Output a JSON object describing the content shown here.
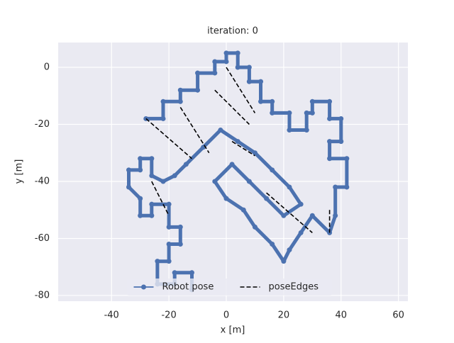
{
  "chart_data": {
    "type": "line",
    "title": "iteration: 0",
    "x_label": "x [m]",
    "y_label": "y [m]",
    "xlim": [
      -58.6,
      63.3
    ],
    "ylim": [
      -82,
      8.7
    ],
    "xticks": [
      -40,
      -20,
      0,
      20,
      40,
      60
    ],
    "yticks": [
      -80,
      -60,
      -40,
      -20,
      0
    ],
    "grid": true,
    "legend": "lower center",
    "series": [
      {
        "name": "Robot pose",
        "color": "#4c72b0",
        "marker": "o",
        "x": [
          -28,
          -22,
          -22,
          -16,
          -16,
          -10,
          -10,
          -4,
          -4,
          0,
          0,
          4,
          4,
          8,
          8,
          12,
          12,
          16,
          16,
          22,
          22,
          28,
          28,
          30,
          30,
          36,
          36,
          40,
          40,
          36,
          36,
          42,
          42,
          38,
          38,
          36,
          30,
          26,
          22,
          20,
          16,
          10,
          6,
          0,
          -4,
          2,
          8,
          14,
          20,
          26,
          22,
          16,
          10,
          4,
          -2,
          -8,
          -14,
          -18,
          -22,
          -26,
          -26,
          -30,
          -30,
          -34,
          -34,
          -30,
          -30,
          -26,
          -26,
          -20,
          -20,
          -16,
          -16,
          -20,
          -20,
          -24,
          -24,
          -18,
          -18,
          -12,
          -12
        ],
        "y": [
          -18,
          -18,
          -12,
          -12,
          -8,
          -8,
          -2,
          -2,
          2,
          2,
          5,
          5,
          0,
          0,
          -5,
          -5,
          -12,
          -12,
          -16,
          -16,
          -22,
          -22,
          -16,
          -16,
          -12,
          -12,
          -18,
          -18,
          -26,
          -26,
          -32,
          -32,
          -42,
          -42,
          -52,
          -58,
          -52,
          -58,
          -64,
          -68,
          -62,
          -56,
          -50,
          -46,
          -40,
          -34,
          -40,
          -46,
          -52,
          -48,
          -42,
          -36,
          -30,
          -26,
          -22,
          -28,
          -34,
          -38,
          -40,
          -38,
          -32,
          -32,
          -36,
          -36,
          -42,
          -46,
          -52,
          -52,
          -48,
          -48,
          -56,
          -56,
          -62,
          -62,
          -68,
          -68,
          -76,
          -76,
          -72,
          -72,
          -78
        ]
      },
      {
        "name": "poseEdges",
        "color": "#000000",
        "linestyle": "dashed",
        "x": [
          -28,
          -12,
          null,
          0,
          10,
          null,
          -4,
          8,
          null,
          36,
          36,
          null,
          2,
          10,
          null,
          -16,
          -6,
          null,
          14,
          30,
          null,
          -26,
          -20
        ],
        "y": [
          -18,
          -32,
          null,
          0,
          -16,
          null,
          -8,
          -20,
          null,
          -50,
          -58,
          null,
          -26,
          -31,
          null,
          -14,
          -30,
          null,
          -44,
          -58,
          null,
          -40,
          -52
        ]
      }
    ]
  }
}
